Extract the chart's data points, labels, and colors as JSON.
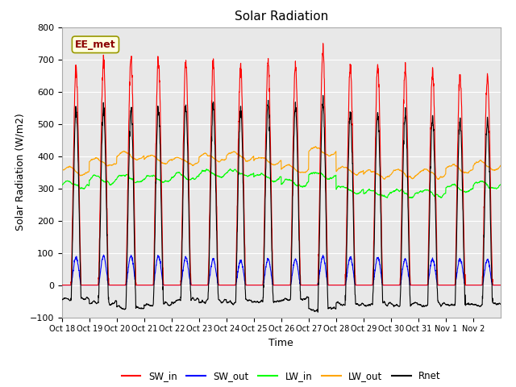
{
  "title": "Solar Radiation",
  "xlabel": "Time",
  "ylabel": "Solar Radiation (W/m2)",
  "ylim": [
    -100,
    800
  ],
  "yticks": [
    -100,
    0,
    100,
    200,
    300,
    400,
    500,
    600,
    700,
    800
  ],
  "xtick_labels": [
    "Oct 18",
    "Oct 19",
    "Oct 20",
    "Oct 21",
    "Oct 22",
    "Oct 23",
    "Oct 24",
    "Oct 25",
    "Oct 26",
    "Oct 27",
    "Oct 28",
    "Oct 29",
    "Oct 30",
    "Oct 31",
    "Nov 1",
    "Nov 2"
  ],
  "annotation_text": "EE_met",
  "fig_bg": "#ffffff",
  "plot_bg": "#e8e8e8",
  "legend_entries": [
    "SW_in",
    "SW_out",
    "LW_in",
    "LW_out",
    "Rnet"
  ],
  "legend_colors": [
    "red",
    "blue",
    "lime",
    "orange",
    "black"
  ],
  "sw_in_peaks": [
    670,
    695,
    700,
    700,
    695,
    685,
    670,
    690,
    680,
    730,
    680,
    680,
    670,
    665,
    650,
    645
  ],
  "lw_in_base": [
    310,
    325,
    330,
    330,
    335,
    345,
    350,
    335,
    315,
    340,
    295,
    285,
    285,
    285,
    300,
    310
  ],
  "lw_out_base": [
    355,
    380,
    400,
    390,
    385,
    395,
    400,
    385,
    360,
    415,
    355,
    345,
    345,
    345,
    360,
    370
  ],
  "sw_out_peaks": [
    85,
    90,
    90,
    90,
    85,
    80,
    75,
    80,
    80,
    90,
    85,
    85,
    80,
    80,
    80,
    80
  ],
  "n_days": 16,
  "points_per_day": 144
}
